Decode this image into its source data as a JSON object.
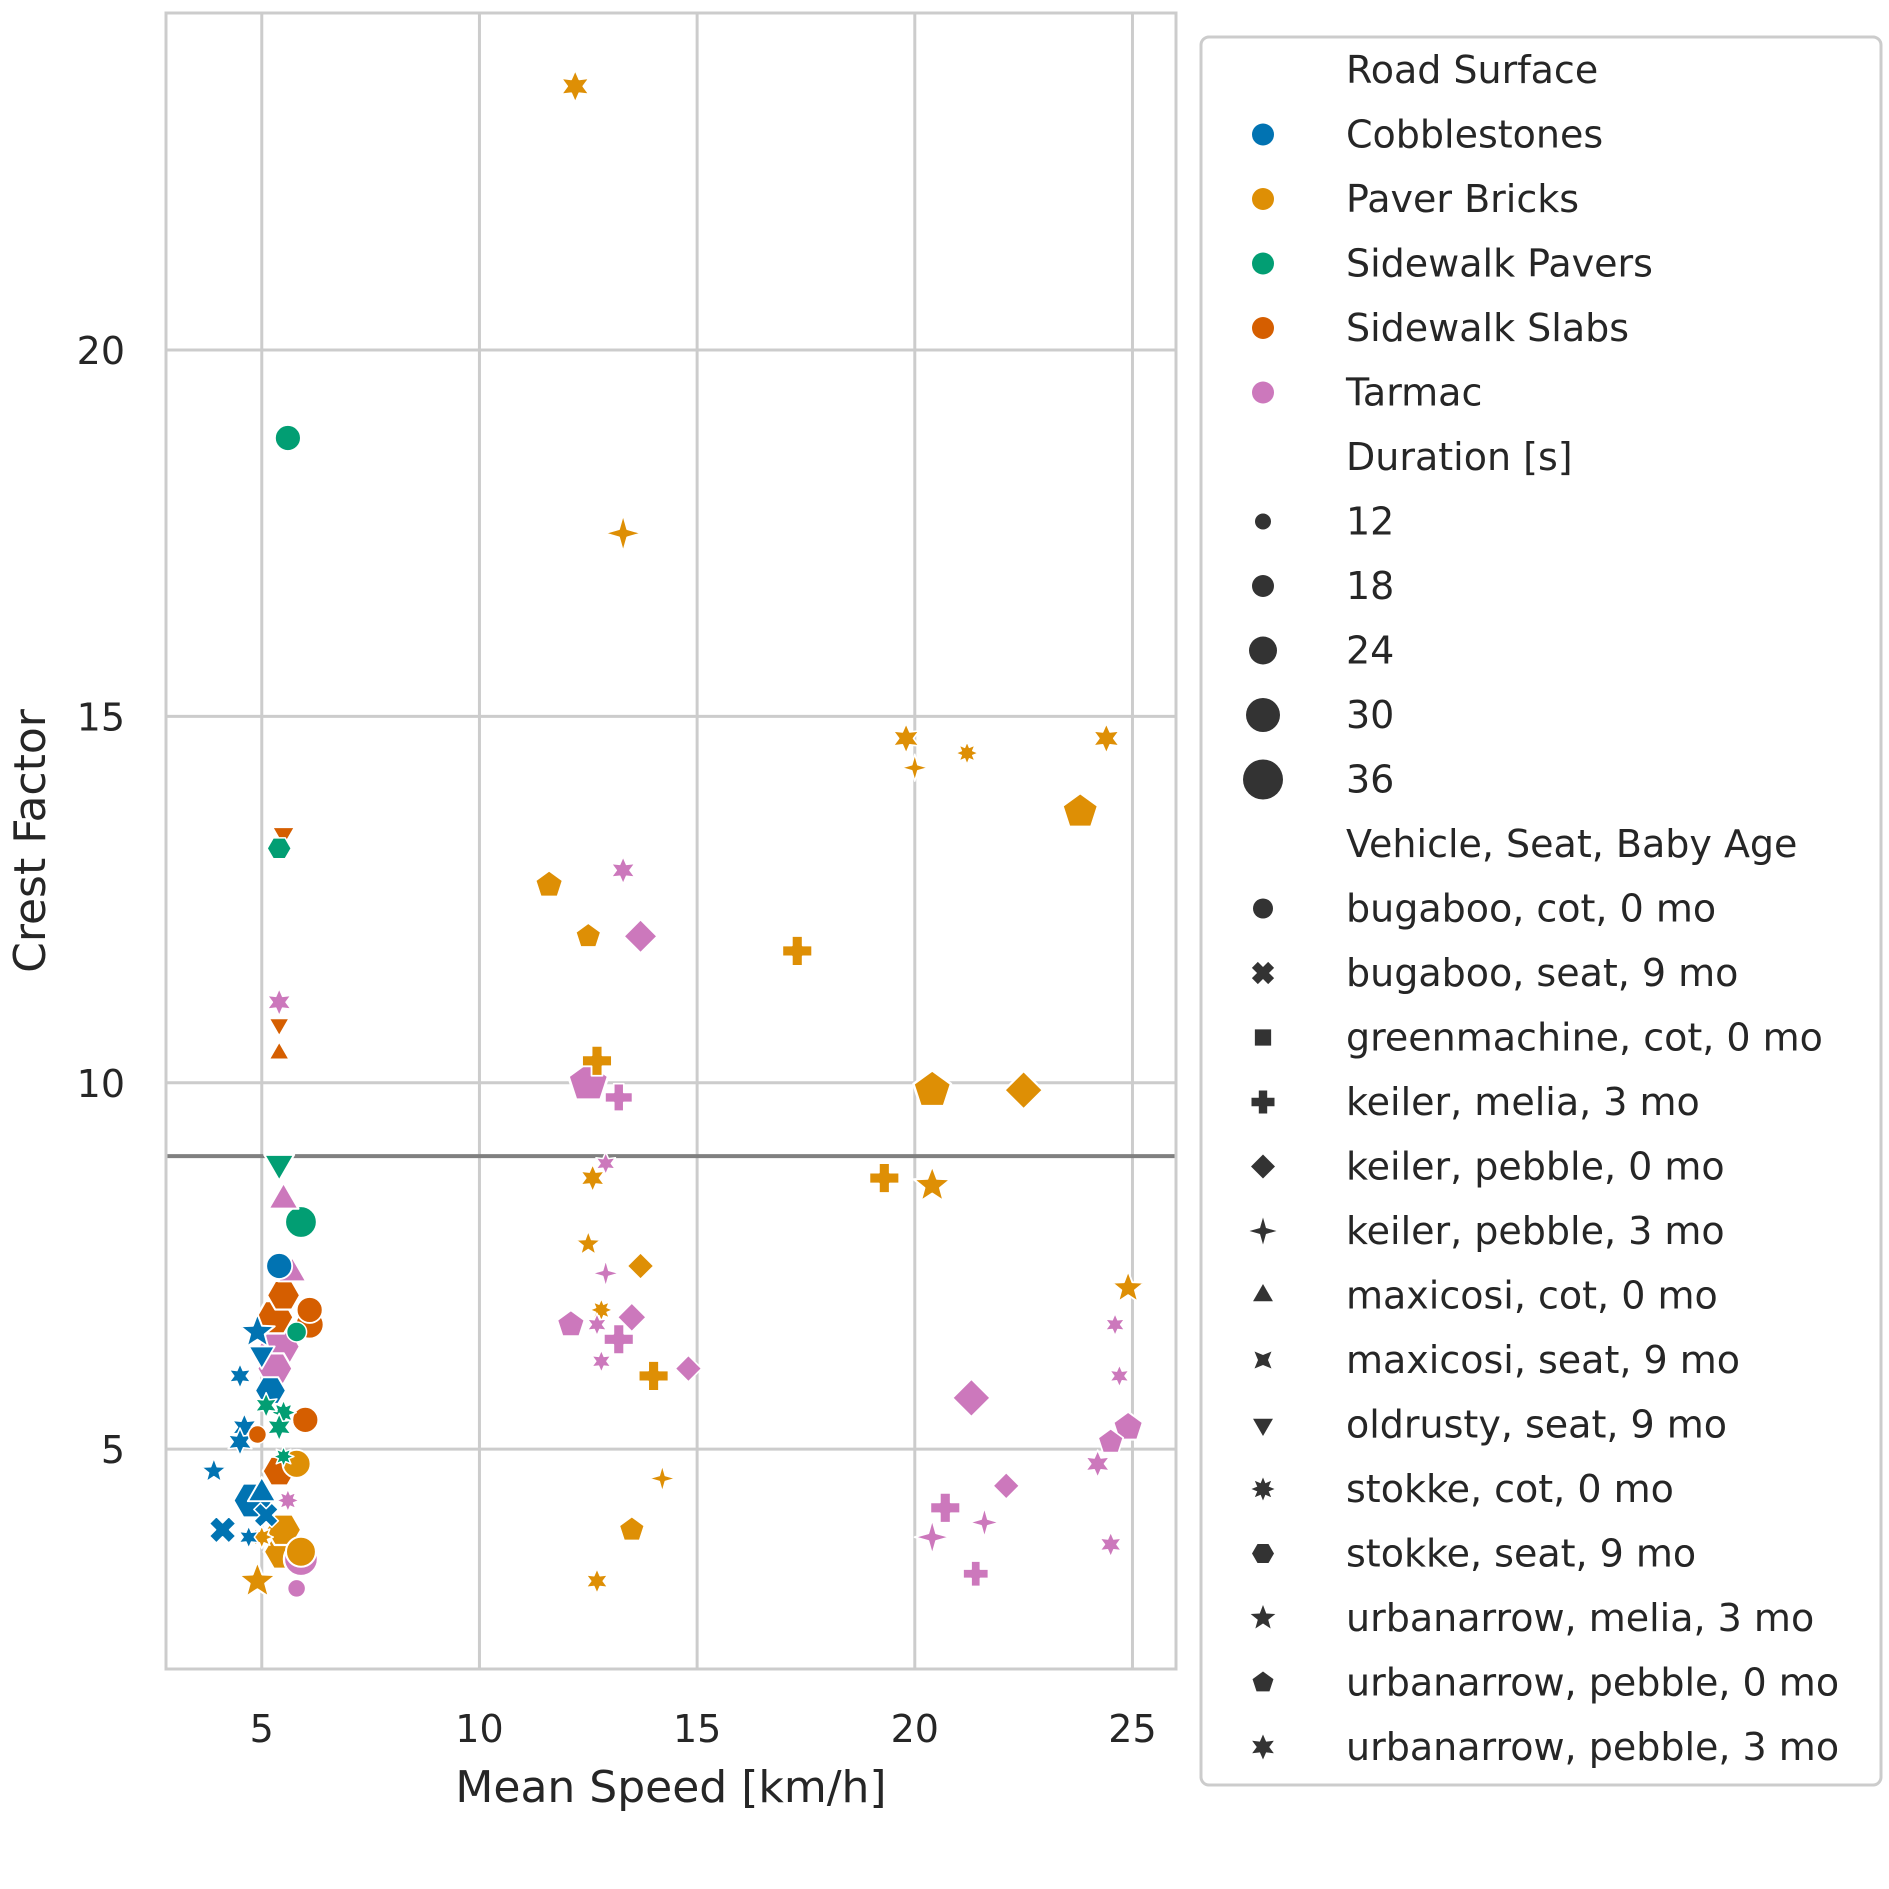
{
  "chart_data": {
    "type": "scatter",
    "xlabel": "Mean Speed [km/h]",
    "ylabel": "Crest Factor",
    "xlim": [
      2.8,
      26.0
    ],
    "ylim": [
      2.0,
      24.6
    ],
    "xticks": [
      5,
      10,
      15,
      20,
      25
    ],
    "yticks": [
      5,
      10,
      15,
      20
    ],
    "grid": true,
    "reference_line": {
      "y": 9.0,
      "color": "#808080"
    },
    "legend": {
      "placement": "outside-right",
      "hue_title": "Road Surface",
      "hue_entries": [
        {
          "name": "Cobblestones",
          "color": "#0173b2"
        },
        {
          "name": "Paver Bricks",
          "color": "#de8f05"
        },
        {
          "name": "Sidewalk Pavers",
          "color": "#029e73"
        },
        {
          "name": "Sidewalk Slabs",
          "color": "#d55e00"
        },
        {
          "name": "Tarmac",
          "color": "#cc78bc"
        }
      ],
      "size_title": "Duration [s]",
      "size_entries": [
        {
          "label": "12",
          "value": 12
        },
        {
          "label": "18",
          "value": 18
        },
        {
          "label": "24",
          "value": 24
        },
        {
          "label": "30",
          "value": 30
        },
        {
          "label": "36",
          "value": 36
        }
      ],
      "style_title": "Vehicle, Seat, Baby Age",
      "style_entries": [
        {
          "name": "bugaboo, cot, 0 mo",
          "marker": "circle"
        },
        {
          "name": "bugaboo, seat, 9 mo",
          "marker": "x"
        },
        {
          "name": "greenmachine, cot, 0 mo",
          "marker": "square"
        },
        {
          "name": "keiler, melia, 3 mo",
          "marker": "plus"
        },
        {
          "name": "keiler, pebble, 0 mo",
          "marker": "diamond"
        },
        {
          "name": "keiler, pebble, 3 mo",
          "marker": "star4"
        },
        {
          "name": "maxicosi, cot, 0 mo",
          "marker": "triangle-up"
        },
        {
          "name": "maxicosi, seat, 9 mo",
          "marker": "x-star"
        },
        {
          "name": "oldrusty, seat, 9 mo",
          "marker": "triangle-down"
        },
        {
          "name": "stokke, cot, 0 mo",
          "marker": "star8"
        },
        {
          "name": "stokke, seat, 9 mo",
          "marker": "hexagon"
        },
        {
          "name": "urbanarrow, melia, 3 mo",
          "marker": "star5"
        },
        {
          "name": "urbanarrow, pebble, 0 mo",
          "marker": "pentagon"
        },
        {
          "name": "urbanarrow, pebble, 3 mo",
          "marker": "star6"
        }
      ]
    },
    "points": [
      {
        "x": 12.2,
        "y": 23.6,
        "surface": "Paver Bricks",
        "vehicle": "urbanarrow, pebble, 3 mo",
        "duration": 22
      },
      {
        "x": 5.6,
        "y": 18.8,
        "surface": "Sidewalk Pavers",
        "vehicle": "bugaboo, cot, 0 mo",
        "duration": 22
      },
      {
        "x": 13.3,
        "y": 17.5,
        "surface": "Paver Bricks",
        "vehicle": "keiler, pebble, 3 mo",
        "duration": 24
      },
      {
        "x": 19.8,
        "y": 14.7,
        "surface": "Paver Bricks",
        "vehicle": "urbanarrow, pebble, 3 mo",
        "duration": 20
      },
      {
        "x": 24.4,
        "y": 14.7,
        "surface": "Paver Bricks",
        "vehicle": "urbanarrow, pebble, 3 mo",
        "duration": 20
      },
      {
        "x": 21.2,
        "y": 14.5,
        "surface": "Paver Bricks",
        "vehicle": "stokke, cot, 0 mo",
        "duration": 16
      },
      {
        "x": 20.0,
        "y": 14.3,
        "surface": "Paver Bricks",
        "vehicle": "keiler, pebble, 3 mo",
        "duration": 16
      },
      {
        "x": 23.8,
        "y": 13.7,
        "surface": "Paver Bricks",
        "vehicle": "urbanarrow, pebble, 0 mo",
        "duration": 30
      },
      {
        "x": 5.5,
        "y": 13.4,
        "surface": "Sidewalk Slabs",
        "vehicle": "oldrusty, seat, 9 mo",
        "duration": 18
      },
      {
        "x": 5.4,
        "y": 13.2,
        "surface": "Sidewalk Pavers",
        "vehicle": "stokke, seat, 9 mo",
        "duration": 18
      },
      {
        "x": 13.3,
        "y": 12.9,
        "surface": "Tarmac",
        "vehicle": "urbanarrow, pebble, 3 mo",
        "duration": 18
      },
      {
        "x": 11.6,
        "y": 12.7,
        "surface": "Paver Bricks",
        "vehicle": "urbanarrow, pebble, 0 mo",
        "duration": 22
      },
      {
        "x": 12.5,
        "y": 12.0,
        "surface": "Paver Bricks",
        "vehicle": "urbanarrow, pebble, 0 mo",
        "duration": 20
      },
      {
        "x": 13.7,
        "y": 12.0,
        "surface": "Tarmac",
        "vehicle": "keiler, pebble, 0 mo",
        "duration": 24
      },
      {
        "x": 17.3,
        "y": 11.8,
        "surface": "Paver Bricks",
        "vehicle": "keiler, melia, 3 mo",
        "duration": 22
      },
      {
        "x": 5.4,
        "y": 11.1,
        "surface": "Tarmac",
        "vehicle": "urbanarrow, pebble, 3 mo",
        "duration": 18
      },
      {
        "x": 5.4,
        "y": 10.8,
        "surface": "Sidewalk Slabs",
        "vehicle": "oldrusty, seat, 9 mo",
        "duration": 16
      },
      {
        "x": 5.4,
        "y": 10.4,
        "surface": "Sidewalk Slabs",
        "vehicle": "maxicosi, cot, 0 mo",
        "duration": 16
      },
      {
        "x": 12.7,
        "y": 10.3,
        "surface": "Paver Bricks",
        "vehicle": "keiler, melia, 3 mo",
        "duration": 22
      },
      {
        "x": 12.5,
        "y": 10.0,
        "surface": "Tarmac",
        "vehicle": "urbanarrow, pebble, 0 mo",
        "duration": 34
      },
      {
        "x": 20.4,
        "y": 9.9,
        "surface": "Paver Bricks",
        "vehicle": "urbanarrow, pebble, 0 mo",
        "duration": 32
      },
      {
        "x": 22.5,
        "y": 9.9,
        "surface": "Paver Bricks",
        "vehicle": "keiler, pebble, 0 mo",
        "duration": 28
      },
      {
        "x": 13.2,
        "y": 9.8,
        "surface": "Tarmac",
        "vehicle": "keiler, melia, 3 mo",
        "duration": 20
      },
      {
        "x": 12.9,
        "y": 8.9,
        "surface": "Tarmac",
        "vehicle": "urbanarrow, pebble, 3 mo",
        "duration": 14
      },
      {
        "x": 5.4,
        "y": 8.9,
        "surface": "Sidewalk Pavers",
        "vehicle": "oldrusty, seat, 9 mo",
        "duration": 26
      },
      {
        "x": 12.6,
        "y": 8.7,
        "surface": "Paver Bricks",
        "vehicle": "urbanarrow, pebble, 3 mo",
        "duration": 18
      },
      {
        "x": 19.3,
        "y": 8.7,
        "surface": "Paver Bricks",
        "vehicle": "keiler, melia, 3 mo",
        "duration": 22
      },
      {
        "x": 20.4,
        "y": 8.6,
        "surface": "Paver Bricks",
        "vehicle": "urbanarrow, melia, 3 mo",
        "duration": 26
      },
      {
        "x": 5.5,
        "y": 8.4,
        "surface": "Tarmac",
        "vehicle": "maxicosi, cot, 0 mo",
        "duration": 26
      },
      {
        "x": 5.9,
        "y": 8.1,
        "surface": "Sidewalk Pavers",
        "vehicle": "bugaboo, cot, 0 mo",
        "duration": 28
      },
      {
        "x": 12.5,
        "y": 7.8,
        "surface": "Paver Bricks",
        "vehicle": "urbanarrow, melia, 3 mo",
        "duration": 16
      },
      {
        "x": 5.4,
        "y": 7.5,
        "surface": "Cobblestones",
        "vehicle": "bugaboo, cot, 0 mo",
        "duration": 22
      },
      {
        "x": 5.7,
        "y": 7.4,
        "surface": "Tarmac",
        "vehicle": "maxicosi, cot, 0 mo",
        "duration": 24
      },
      {
        "x": 13.7,
        "y": 7.5,
        "surface": "Paver Bricks",
        "vehicle": "keiler, pebble, 0 mo",
        "duration": 18
      },
      {
        "x": 12.9,
        "y": 7.4,
        "surface": "Tarmac",
        "vehicle": "keiler, pebble, 3 mo",
        "duration": 16
      },
      {
        "x": 24.9,
        "y": 7.2,
        "surface": "Paver Bricks",
        "vehicle": "urbanarrow, melia, 3 mo",
        "duration": 22
      },
      {
        "x": 5.5,
        "y": 7.1,
        "surface": "Sidewalk Slabs",
        "vehicle": "stokke, seat, 9 mo",
        "duration": 26
      },
      {
        "x": 6.1,
        "y": 6.9,
        "surface": "Sidewalk Slabs",
        "vehicle": "bugaboo, cot, 0 mo",
        "duration": 22
      },
      {
        "x": 5.3,
        "y": 6.8,
        "surface": "Sidewalk Slabs",
        "vehicle": "stokke, seat, 9 mo",
        "duration": 30
      },
      {
        "x": 12.8,
        "y": 6.9,
        "surface": "Paver Bricks",
        "vehicle": "stokke, cot, 0 mo",
        "duration": 16
      },
      {
        "x": 12.7,
        "y": 6.7,
        "surface": "Tarmac",
        "vehicle": "urbanarrow, pebble, 3 mo",
        "duration": 14
      },
      {
        "x": 13.5,
        "y": 6.8,
        "surface": "Tarmac",
        "vehicle": "keiler, pebble, 0 mo",
        "duration": 20
      },
      {
        "x": 12.1,
        "y": 6.7,
        "surface": "Tarmac",
        "vehicle": "urbanarrow, pebble, 0 mo",
        "duration": 22
      },
      {
        "x": 24.6,
        "y": 6.7,
        "surface": "Tarmac",
        "vehicle": "urbanarrow, pebble, 3 mo",
        "duration": 14
      },
      {
        "x": 6.1,
        "y": 6.7,
        "surface": "Sidewalk Slabs",
        "vehicle": "bugaboo, cot, 0 mo",
        "duration": 24
      },
      {
        "x": 4.9,
        "y": 6.6,
        "surface": "Cobblestones",
        "vehicle": "urbanarrow, melia, 3 mo",
        "duration": 24
      },
      {
        "x": 5.8,
        "y": 6.6,
        "surface": "Sidewalk Pavers",
        "vehicle": "bugaboo, cot, 0 mo",
        "duration": 16
      },
      {
        "x": 13.2,
        "y": 6.5,
        "surface": "Tarmac",
        "vehicle": "keiler, melia, 3 mo",
        "duration": 22
      },
      {
        "x": 5.4,
        "y": 6.4,
        "surface": "Tarmac",
        "vehicle": "stokke, seat, 9 mo",
        "duration": 34
      },
      {
        "x": 5.0,
        "y": 6.3,
        "surface": "Cobblestones",
        "vehicle": "oldrusty, seat, 9 mo",
        "duration": 22
      },
      {
        "x": 12.8,
        "y": 6.2,
        "surface": "Tarmac",
        "vehicle": "urbanarrow, pebble, 3 mo",
        "duration": 14
      },
      {
        "x": 5.3,
        "y": 6.1,
        "surface": "Tarmac",
        "vehicle": "stokke, seat, 9 mo",
        "duration": 28
      },
      {
        "x": 14.8,
        "y": 6.1,
        "surface": "Tarmac",
        "vehicle": "keiler, pebble, 0 mo",
        "duration": 18
      },
      {
        "x": 4.5,
        "y": 6.0,
        "surface": "Cobblestones",
        "vehicle": "urbanarrow, pebble, 3 mo",
        "duration": 16
      },
      {
        "x": 14.0,
        "y": 6.0,
        "surface": "Paver Bricks",
        "vehicle": "keiler, melia, 3 mo",
        "duration": 22
      },
      {
        "x": 24.7,
        "y": 6.0,
        "surface": "Tarmac",
        "vehicle": "urbanarrow, pebble, 3 mo",
        "duration": 14
      },
      {
        "x": 5.2,
        "y": 5.8,
        "surface": "Cobblestones",
        "vehicle": "stokke, seat, 9 mo",
        "duration": 24
      },
      {
        "x": 21.3,
        "y": 5.7,
        "surface": "Tarmac",
        "vehicle": "keiler, pebble, 0 mo",
        "duration": 28
      },
      {
        "x": 5.1,
        "y": 5.6,
        "surface": "Sidewalk Pavers",
        "vehicle": "urbanarrow, pebble, 3 mo",
        "duration": 16
      },
      {
        "x": 5.5,
        "y": 5.5,
        "surface": "Sidewalk Pavers",
        "vehicle": "stokke, cot, 0 mo",
        "duration": 18
      },
      {
        "x": 6.0,
        "y": 5.4,
        "surface": "Sidewalk Slabs",
        "vehicle": "bugaboo, cot, 0 mo",
        "duration": 22
      },
      {
        "x": 5.4,
        "y": 5.3,
        "surface": "Sidewalk Pavers",
        "vehicle": "urbanarrow, pebble, 3 mo",
        "duration": 18
      },
      {
        "x": 24.9,
        "y": 5.3,
        "surface": "Tarmac",
        "vehicle": "urbanarrow, pebble, 0 mo",
        "duration": 24
      },
      {
        "x": 4.6,
        "y": 5.3,
        "surface": "Cobblestones",
        "vehicle": "urbanarrow, pebble, 3 mo",
        "duration": 18
      },
      {
        "x": 4.9,
        "y": 5.2,
        "surface": "Sidewalk Slabs",
        "vehicle": "bugaboo, cot, 0 mo",
        "duration": 14
      },
      {
        "x": 4.5,
        "y": 5.1,
        "surface": "Cobblestones",
        "vehicle": "urbanarrow, pebble, 3 mo",
        "duration": 18
      },
      {
        "x": 24.5,
        "y": 5.1,
        "surface": "Tarmac",
        "vehicle": "urbanarrow, pebble, 0 mo",
        "duration": 20
      },
      {
        "x": 5.5,
        "y": 4.9,
        "surface": "Sidewalk Pavers",
        "vehicle": "stokke, cot, 0 mo",
        "duration": 14
      },
      {
        "x": 5.8,
        "y": 4.8,
        "surface": "Paver Bricks",
        "vehicle": "bugaboo, cot, 0 mo",
        "duration": 24
      },
      {
        "x": 24.2,
        "y": 4.8,
        "surface": "Tarmac",
        "vehicle": "urbanarrow, pebble, 3 mo",
        "duration": 18
      },
      {
        "x": 5.4,
        "y": 4.7,
        "surface": "Sidewalk Slabs",
        "vehicle": "stokke, seat, 9 mo",
        "duration": 26
      },
      {
        "x": 3.9,
        "y": 4.7,
        "surface": "Cobblestones",
        "vehicle": "urbanarrow, melia, 3 mo",
        "duration": 16
      },
      {
        "x": 14.2,
        "y": 4.6,
        "surface": "Paver Bricks",
        "vehicle": "keiler, pebble, 3 mo",
        "duration": 16
      },
      {
        "x": 22.1,
        "y": 4.5,
        "surface": "Tarmac",
        "vehicle": "keiler, pebble, 0 mo",
        "duration": 18
      },
      {
        "x": 5.0,
        "y": 4.4,
        "surface": "Cobblestones",
        "vehicle": "maxicosi, cot, 0 mo",
        "duration": 24
      },
      {
        "x": 5.6,
        "y": 4.3,
        "surface": "Tarmac",
        "vehicle": "stokke, cot, 0 mo",
        "duration": 16
      },
      {
        "x": 4.8,
        "y": 4.3,
        "surface": "Cobblestones",
        "vehicle": "stokke, seat, 9 mo",
        "duration": 32
      },
      {
        "x": 20.7,
        "y": 4.2,
        "surface": "Tarmac",
        "vehicle": "keiler, melia, 3 mo",
        "duration": 22
      },
      {
        "x": 5.1,
        "y": 4.1,
        "surface": "Cobblestones",
        "vehicle": "bugaboo, seat, 9 mo",
        "duration": 18
      },
      {
        "x": 21.6,
        "y": 4.0,
        "surface": "Tarmac",
        "vehicle": "keiler, pebble, 3 mo",
        "duration": 18
      },
      {
        "x": 13.5,
        "y": 3.9,
        "surface": "Paver Bricks",
        "vehicle": "urbanarrow, pebble, 0 mo",
        "duration": 20
      },
      {
        "x": 4.1,
        "y": 3.9,
        "surface": "Cobblestones",
        "vehicle": "bugaboo, seat, 9 mo",
        "duration": 20
      },
      {
        "x": 5.5,
        "y": 3.9,
        "surface": "Paver Bricks",
        "vehicle": "stokke, seat, 9 mo",
        "duration": 28
      },
      {
        "x": 20.4,
        "y": 3.8,
        "surface": "Tarmac",
        "vehicle": "keiler, pebble, 3 mo",
        "duration": 22
      },
      {
        "x": 4.7,
        "y": 3.8,
        "surface": "Cobblestones",
        "vehicle": "urbanarrow, pebble, 3 mo",
        "duration": 14
      },
      {
        "x": 5.0,
        "y": 3.8,
        "surface": "Paver Bricks",
        "vehicle": "stokke, cot, 0 mo",
        "duration": 16
      },
      {
        "x": 24.5,
        "y": 3.7,
        "surface": "Tarmac",
        "vehicle": "urbanarrow, pebble, 3 mo",
        "duration": 16
      },
      {
        "x": 5.5,
        "y": 3.6,
        "surface": "Paver Bricks",
        "vehicle": "stokke, seat, 9 mo",
        "duration": 32
      },
      {
        "x": 5.9,
        "y": 3.6,
        "surface": "Paver Bricks",
        "vehicle": "bugaboo, cot, 0 mo",
        "duration": 26
      },
      {
        "x": 5.9,
        "y": 3.5,
        "surface": "Tarmac",
        "vehicle": "bugaboo, cot, 0 mo",
        "duration": 30
      },
      {
        "x": 21.4,
        "y": 3.3,
        "surface": "Tarmac",
        "vehicle": "keiler, melia, 3 mo",
        "duration": 18
      },
      {
        "x": 4.9,
        "y": 3.2,
        "surface": "Paver Bricks",
        "vehicle": "urbanarrow, melia, 3 mo",
        "duration": 26
      },
      {
        "x": 12.7,
        "y": 3.2,
        "surface": "Paver Bricks",
        "vehicle": "urbanarrow, pebble, 3 mo",
        "duration": 16
      },
      {
        "x": 5.8,
        "y": 3.1,
        "surface": "Tarmac",
        "vehicle": "bugaboo, cot, 0 mo",
        "duration": 14
      }
    ]
  }
}
